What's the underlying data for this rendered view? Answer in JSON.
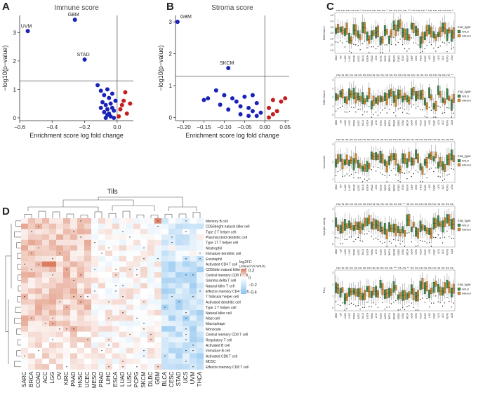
{
  "panels": {
    "a": {
      "letter": "A"
    },
    "b": {
      "letter": "B"
    },
    "c": {
      "letter": "C"
    },
    "d": {
      "letter": "D"
    }
  },
  "colors": {
    "blue": "#1a23b8",
    "red": "#c41e1e",
    "green": "#3b8a48",
    "orange": "#d68a27",
    "heat_pos": "#d9785a",
    "heat_neg": "#8ac2ee"
  },
  "chart_data": [
    {
      "id": "immune",
      "type": "scatter",
      "title": "Immune score",
      "xlabel": "Enrichment score log fold change",
      "ylabel": "−log10(p−value)",
      "xlim": [
        -0.6,
        0.1
      ],
      "ylim": [
        -0.1,
        3.6
      ],
      "xticks": [
        {
          "v": -0.6,
          "t": "−0.6"
        },
        {
          "v": -0.4,
          "t": "−0.4"
        },
        {
          "v": -0.2,
          "t": "−0.2"
        },
        {
          "v": 0.0,
          "t": "0.0"
        }
      ],
      "yticks": [
        {
          "v": 0,
          "t": "0"
        },
        {
          "v": 1,
          "t": "1"
        },
        {
          "v": 2,
          "t": "2"
        },
        {
          "v": 3,
          "t": "3"
        }
      ],
      "vline": 0.0,
      "hline": 1.3,
      "labeled_points": [
        {
          "label": "UVM",
          "x": -0.55,
          "y": 3.05
        },
        {
          "label": "GBM",
          "x": -0.26,
          "y": 3.45
        },
        {
          "label": "STAD",
          "x": -0.2,
          "y": 2.05
        }
      ],
      "blue_points": [
        [
          -0.12,
          1.15
        ],
        [
          -0.1,
          0.95
        ],
        [
          -0.08,
          0.8
        ],
        [
          -0.06,
          1.0
        ],
        [
          -0.05,
          0.7
        ],
        [
          -0.09,
          0.55
        ],
        [
          -0.07,
          0.45
        ],
        [
          -0.04,
          0.5
        ],
        [
          -0.06,
          0.3
        ],
        [
          -0.03,
          0.35
        ],
        [
          -0.08,
          0.2
        ],
        [
          -0.05,
          0.15
        ],
        [
          -0.02,
          0.25
        ],
        [
          -0.04,
          0.05
        ],
        [
          -0.06,
          0.1
        ],
        [
          -0.02,
          0.0
        ],
        [
          -0.01,
          0.6
        ],
        [
          -0.03,
          0.85
        ],
        [
          -0.1,
          0.35
        ],
        [
          -0.07,
          0.0
        ]
      ],
      "red_points": [
        [
          0.02,
          0.3
        ],
        [
          0.04,
          0.6
        ],
        [
          0.05,
          0.9
        ],
        [
          0.03,
          0.45
        ],
        [
          0.06,
          0.15
        ],
        [
          0.01,
          0.05
        ],
        [
          0.08,
          0.5
        ]
      ]
    },
    {
      "id": "stroma",
      "type": "scatter",
      "title": "Stroma score",
      "xlabel": "Enrichment score log fold change",
      "ylabel": "−log10(p−value)",
      "xlim": [
        -0.22,
        0.06
      ],
      "ylim": [
        -0.1,
        3.2
      ],
      "xticks": [
        {
          "v": -0.2,
          "t": "−0.20"
        },
        {
          "v": -0.15,
          "t": "−0.15"
        },
        {
          "v": -0.1,
          "t": "−0.10"
        },
        {
          "v": -0.05,
          "t": "−0.05"
        },
        {
          "v": 0.0,
          "t": "0.00"
        },
        {
          "v": 0.05,
          "t": "0.05"
        }
      ],
      "yticks": [
        {
          "v": 0,
          "t": "0"
        },
        {
          "v": 1,
          "t": "1"
        },
        {
          "v": 2,
          "t": "2"
        },
        {
          "v": 3,
          "t": "3"
        }
      ],
      "vline": 0.0,
      "hline": 1.3,
      "labeled_points": [
        {
          "label": "GBM",
          "x": -0.215,
          "y": 3.0
        },
        {
          "label": "SKCM",
          "x": -0.09,
          "y": 1.55
        }
      ],
      "blue_points": [
        [
          -0.15,
          0.55
        ],
        [
          -0.14,
          0.6
        ],
        [
          -0.12,
          0.85
        ],
        [
          -0.1,
          0.7
        ],
        [
          -0.08,
          0.6
        ],
        [
          -0.07,
          0.5
        ],
        [
          -0.06,
          0.35
        ],
        [
          -0.05,
          0.65
        ],
        [
          -0.04,
          0.3
        ],
        [
          -0.03,
          0.2
        ],
        [
          -0.02,
          0.45
        ],
        [
          -0.06,
          0.1
        ],
        [
          -0.04,
          0.05
        ],
        [
          -0.01,
          0.15
        ],
        [
          -0.09,
          0.25
        ],
        [
          -0.11,
          0.4
        ],
        [
          -0.03,
          0.7
        ],
        [
          -0.02,
          0.05
        ]
      ],
      "red_points": [
        [
          0.01,
          0.3
        ],
        [
          0.02,
          0.55
        ],
        [
          0.03,
          0.2
        ],
        [
          0.04,
          0.5
        ],
        [
          0.05,
          0.6
        ],
        [
          0.02,
          0.1
        ],
        [
          0.01,
          0.0
        ]
      ]
    },
    {
      "id": "d",
      "type": "heatmap",
      "title": "Tils",
      "legend_title": "log2FC",
      "legend_subtitle": "(Altered VS WILD)",
      "legend_ticks": [
        {
          "v": 0.2,
          "t": "0.2"
        },
        {
          "v": 0.0,
          "t": "0"
        },
        {
          "v": -0.2,
          "t": "−0.2"
        },
        {
          "v": -0.4,
          "t": "−0.4"
        }
      ],
      "range": [
        -0.45,
        0.25
      ],
      "columns": [
        "SARC",
        "BRCA",
        "COAD",
        "ACC",
        "LGG",
        "OV",
        "KIRC",
        "PAAD",
        "HNSC",
        "UCEC",
        "MESO",
        "PRAD",
        "LIHC",
        "ESCA",
        "LUAD",
        "LUSC",
        "PCPG",
        "SKCM",
        "DLBC",
        "GBM",
        "BLCA",
        "CESC",
        "STAD",
        "UCS",
        "UVM",
        "THCA"
      ],
      "rows": [
        "Memory B cell",
        "CD56bright natural killer cell",
        "Type 2 T helper cell",
        "Plasmacytoid dendritic cell",
        "Type 17 T helper cell",
        "Neutrophil",
        "Immature dendritic cell",
        "Eosinophil",
        "Activated CD4 T cell",
        "CD56dim natural killer cell",
        "Central memory CD8 T cell",
        "Gamma delta T cell",
        "Natural killer T cell",
        "Effector memory CD4 T cell",
        "T follicular helper cell",
        "Activated dendritic cell",
        "Type 1 T helper cell",
        "Natural killer cell",
        "Mast cell",
        "Macrophage",
        "Monocyte",
        "Central memory CD4 T cell",
        "Regulatory T cell",
        "Activated B cell",
        "Immature B cell",
        "Activated CD8 T cell",
        "MDSC",
        "Effector memory CD8 T cell"
      ]
    }
  ],
  "panel_c": {
    "legend_title": "mut_type",
    "legend_items": [
      "WILD",
      "Altered"
    ],
    "categories": [
      "GBM",
      "OV",
      "LUAD",
      "LUSC",
      "PRAD",
      "UCEC",
      "BLCA",
      "ESCA",
      "PAAD",
      "LIHC",
      "CESC",
      "SARC",
      "BRCA",
      "MESO",
      "COAD",
      "STAD",
      "SKCM",
      "KIRP",
      "KIRC",
      "THCA",
      "HNSC",
      "LGG",
      "DLBC",
      "UCS",
      "ACC",
      "PCPG",
      "UVM"
    ],
    "subplots": [
      {
        "ylabel": "MHC Class I",
        "yticks": [
          "1.5",
          "2.0",
          "2.5",
          "3.0",
          "3.5",
          "4.0",
          "4.5"
        ],
        "signif": "ns ns ns ns ns * ns ns ns ns ns * ns ns ns ns ** ns ns ns * ns ns ns ns ns *"
      },
      {
        "ylabel": "MHC Class II",
        "yticks": [
          "0",
          "1",
          "2",
          "3",
          "4"
        ],
        "signif": "ns ns ns ns ns ns ns ns ns ns ns ns ns ns ns ns ns ns ns ns ns ns ns ns ns ns **"
      },
      {
        "ylabel": "chemokines",
        "yticks": [
          "1",
          "2",
          "3"
        ],
        "signif": "ns ns ns ns ns ns ns ns ns ns ns ns ns ns ns ns ns ns ns ns ns ns ns ns ns ns ns"
      },
      {
        "ylabel": "Cytolytic activity",
        "yticks": [
          "0",
          "1",
          "2",
          "3"
        ],
        "signif": "ns ns ns ns ns ns ns ns ns ns ns ns ns ns ns ** ns ns ns ns ns ns ns ns ns ns ns"
      },
      {
        "ylabel": "IFN-γ",
        "yticks": [
          "0",
          "1",
          "2",
          "3"
        ],
        "signif": "ns ns ns ns ns ns ns ns ns ns ns ns ns *** ns ns ** ns ns ns ns ns ns ns ns ns ns"
      }
    ]
  }
}
